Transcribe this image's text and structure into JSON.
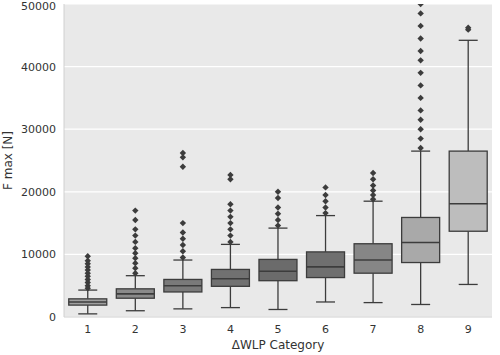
{
  "chart_data": {
    "type": "box",
    "x_label": "ΔWLP Category",
    "y_label": "F max [N]",
    "categories": [
      "1",
      "2",
      "3",
      "4",
      "5",
      "6",
      "7",
      "8",
      "9"
    ],
    "boxes": [
      {
        "whisker_low": 500,
        "q1": 1900,
        "median": 2400,
        "q3": 2900,
        "whisker_high": 4300,
        "outliers": [
          4600,
          5000,
          5500,
          6000,
          6500,
          7000,
          7500,
          8000,
          8500,
          9000,
          9700
        ]
      },
      {
        "whisker_low": 1000,
        "q1": 3000,
        "median": 3700,
        "q3": 4500,
        "whisker_high": 6600,
        "outliers": [
          7000,
          7800,
          8600,
          9400,
          10200,
          11000,
          12000,
          13000,
          14000,
          15500,
          17000
        ]
      },
      {
        "whisker_low": 1300,
        "q1": 4000,
        "median": 5000,
        "q3": 6000,
        "whisker_high": 9100,
        "outliers": [
          9500,
          10500,
          11500,
          12500,
          13500,
          15000,
          24000,
          25500,
          26200
        ]
      },
      {
        "whisker_low": 1500,
        "q1": 4900,
        "median": 6100,
        "q3": 7600,
        "whisker_high": 11600,
        "outliers": [
          12000,
          13000,
          14000,
          15000,
          16000,
          17000,
          18000,
          22000,
          22700
        ]
      },
      {
        "whisker_low": 1200,
        "q1": 5800,
        "median": 7300,
        "q3": 9200,
        "whisker_high": 14200,
        "outliers": [
          14600,
          15500,
          16500,
          17500,
          19000,
          20000
        ]
      },
      {
        "whisker_low": 2400,
        "q1": 6300,
        "median": 8000,
        "q3": 10400,
        "whisker_high": 16200,
        "outliers": [
          16600,
          17500,
          18500,
          19500,
          20700
        ]
      },
      {
        "whisker_low": 2300,
        "q1": 7000,
        "median": 9100,
        "q3": 11700,
        "whisker_high": 18500,
        "outliers": [
          18800,
          19500,
          20200,
          21000,
          22000,
          23000
        ]
      },
      {
        "whisker_low": 2000,
        "q1": 8700,
        "median": 11900,
        "q3": 15900,
        "whisker_high": 26500,
        "outliers": [
          27000,
          28500,
          30000,
          31500,
          33000,
          35000,
          37000,
          39000,
          41000,
          42500,
          44500,
          46500,
          48500,
          50000
        ]
      },
      {
        "whisker_low": 5200,
        "q1": 13700,
        "median": 18100,
        "q3": 26500,
        "whisker_high": 44200,
        "outliers": [
          45900,
          46200
        ]
      }
    ],
    "colors": [
      "#a0a0a0",
      "#8a8a8a",
      "#7a7a7a",
      "#717171",
      "#6b6b6b",
      "#6f6f6f",
      "#868686",
      "#a9a9a9",
      "#bdbdbd"
    ],
    "ylim": [
      0,
      50000
    ],
    "yticks": [
      0,
      10000,
      20000,
      30000,
      40000,
      50000
    ],
    "grid": true
  }
}
